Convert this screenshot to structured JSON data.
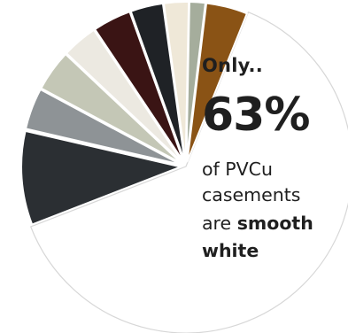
{
  "chart_data": {
    "type": "pie",
    "annotations": {
      "only": "Only..",
      "percent": "63%",
      "line1": "of PVCu",
      "line2": "casements",
      "line3_prefix": "are",
      "line3_bold": "smooth",
      "line4_bold": "white"
    },
    "slices": [
      {
        "name": "smooth white",
        "value": 63,
        "color": "#ffffff"
      },
      {
        "name": "",
        "value": 9.5,
        "color": "#2b2f33"
      },
      {
        "name": "",
        "value": 4.2,
        "color": "#8e9396"
      },
      {
        "name": "",
        "value": 4.2,
        "color": "#c4c7b6"
      },
      {
        "name": "",
        "value": 3.6,
        "color": "#ece9e1"
      },
      {
        "name": "",
        "value": 3.9,
        "color": "#3a1414"
      },
      {
        "name": "",
        "value": 3.3,
        "color": "#1f2226"
      },
      {
        "name": "",
        "value": 2.5,
        "color": "#efe8d8"
      },
      {
        "name": "",
        "value": 1.6,
        "color": "#a5ad9c"
      },
      {
        "name": "",
        "value": 4.2,
        "color": "#8a5315"
      }
    ]
  }
}
